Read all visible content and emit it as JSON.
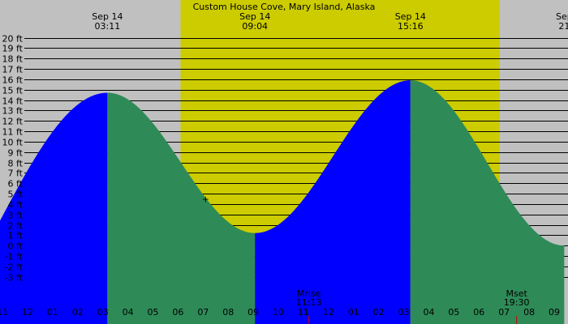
{
  "chart_data": {
    "type": "area",
    "title": "Custom House Cove, Mary Island, Alaska",
    "y_unit": "ft",
    "ylim": [
      -4,
      20
    ],
    "y_ticks": [
      20,
      19,
      18,
      17,
      16,
      15,
      14,
      13,
      12,
      11,
      10,
      9,
      8,
      7,
      6,
      5,
      4,
      3,
      2,
      1,
      0,
      -1,
      -2,
      -3
    ],
    "y_tick_labels": [
      "20 ft",
      "19 ft",
      "18 ft",
      "17 ft",
      "16 ft",
      "15 ft",
      "14 ft",
      "13 ft",
      "12 ft",
      "11 ft",
      "10 ft",
      "9 ft",
      "8 ft",
      "7 ft",
      "6 ft",
      "5 ft",
      "4 ft",
      "3 ft",
      "2 ft",
      "1 ft",
      "0 ft",
      "-1 ft",
      "-2 ft",
      "-3 ft"
    ],
    "x_range_hours": [
      -1.1,
      21.55
    ],
    "hour_ticks": [
      -1,
      0,
      1,
      2,
      3,
      4,
      5,
      6,
      7,
      8,
      9,
      10,
      11,
      12,
      13,
      14,
      15,
      16,
      17,
      18,
      19,
      20,
      21
    ],
    "hour_tick_labels": [
      "11",
      "12",
      "01",
      "02",
      "03",
      "04",
      "05",
      "06",
      "07",
      "08",
      "09",
      "10",
      "11",
      "12",
      "01",
      "02",
      "03",
      "04",
      "05",
      "06",
      "07",
      "08",
      "09"
    ],
    "daylight": {
      "start_hour": 6.1,
      "end_hour": 18.83
    },
    "extremes": [
      {
        "date": "Sep 14",
        "time": "03:11",
        "hour": 3.183,
        "height_ft": 14.7,
        "kind": "high"
      },
      {
        "date": "Sep 14",
        "time": "09:04",
        "hour": 9.067,
        "height_ft": 1.2,
        "kind": "low"
      },
      {
        "date": "Sep 14",
        "time": "15:16",
        "hour": 15.267,
        "height_ft": 15.9,
        "kind": "high"
      },
      {
        "date": "Sep",
        "time": "21",
        "hour": 21.4,
        "height_ft": 0.0,
        "kind": "low"
      }
    ],
    "start_point": {
      "hour": -1.1,
      "height_ft": 2.4
    },
    "moon_events": [
      {
        "label": "Mrise",
        "time": "11:13",
        "hour": 11.217
      },
      {
        "label": "Mset",
        "time": "19:30",
        "hour": 19.5
      }
    ],
    "marker_symbol": "+",
    "marker": {
      "hour": 7.1,
      "height_ft": 4.5
    },
    "colors": {
      "night": "#c0c0c0",
      "day": "#cccc00",
      "rising": "#0000ff",
      "falling": "#2e8b57",
      "grid": "#000000",
      "moon_tick": "#cc0000"
    }
  }
}
